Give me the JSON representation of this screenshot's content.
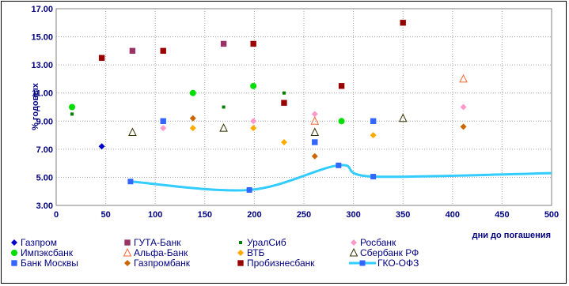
{
  "chart_data": {
    "type": "scatter",
    "title": "",
    "xlabel": "дни до погашения",
    "ylabel": "% годовых",
    "xlim": [
      0,
      500
    ],
    "ylim": [
      3.0,
      17.0
    ],
    "x_ticks": [
      "0",
      "50",
      "100",
      "150",
      "200",
      "250",
      "300",
      "350",
      "400",
      "450",
      "500"
    ],
    "y_ticks": [
      "3.00",
      "5.00",
      "7.00",
      "9.00",
      "11.00",
      "13.00",
      "15.00",
      "17.00"
    ],
    "grid": "dotted",
    "legend_position": "bottom",
    "series": [
      {
        "name": "Газпром",
        "marker": "diamond",
        "color": "#0000cc",
        "points": [
          [
            46,
            7.2
          ]
        ]
      },
      {
        "name": "ГУТА-Банк",
        "marker": "square",
        "color": "#993366",
        "points": [
          [
            77,
            14.0
          ],
          [
            169,
            14.5
          ]
        ]
      },
      {
        "name": "УралСиб",
        "marker": "smallsquare",
        "color": "#008000",
        "points": [
          [
            16,
            9.5
          ],
          [
            169,
            10.0
          ],
          [
            230,
            11.0
          ]
        ]
      },
      {
        "name": "Росбанк",
        "marker": "diamond",
        "color": "#ff99cc",
        "points": [
          [
            108,
            8.5
          ],
          [
            199,
            9.0
          ],
          [
            261,
            9.5
          ],
          [
            411,
            10.0
          ]
        ]
      },
      {
        "name": "Импэксбанк",
        "marker": "circle",
        "color": "#00dd00",
        "points": [
          [
            16,
            10.0
          ],
          [
            138,
            11.0
          ],
          [
            199,
            11.5
          ],
          [
            288,
            9.0
          ]
        ]
      },
      {
        "name": "Альфа-Банк",
        "marker": "triangle",
        "color": "#ff6633",
        "points": [
          [
            261,
            9.0
          ],
          [
            411,
            12.0
          ]
        ]
      },
      {
        "name": "ВТБ",
        "marker": "diamond",
        "color": "#ffaa00",
        "points": [
          [
            138,
            8.5
          ],
          [
            199,
            8.5
          ],
          [
            230,
            7.5
          ],
          [
            320,
            8.0
          ]
        ]
      },
      {
        "name": "Сбербанк РФ",
        "marker": "triangle",
        "color": "#333300",
        "points": [
          [
            77,
            8.2
          ],
          [
            169,
            8.5
          ],
          [
            261,
            8.2
          ],
          [
            350,
            9.2
          ]
        ]
      },
      {
        "name": "Банк Москвы",
        "marker": "square",
        "color": "#3366ff",
        "points": [
          [
            108,
            9.0
          ],
          [
            261,
            7.5
          ],
          [
            320,
            9.0
          ]
        ]
      },
      {
        "name": "Газпромбанк",
        "marker": "diamond",
        "color": "#cc6600",
        "points": [
          [
            138,
            9.2
          ],
          [
            261,
            6.5
          ],
          [
            411,
            8.6
          ]
        ]
      },
      {
        "name": "Пробизнесбанк",
        "marker": "square",
        "color": "#990000",
        "points": [
          [
            46,
            13.5
          ],
          [
            108,
            14.0
          ],
          [
            199,
            14.5
          ],
          [
            230,
            10.3
          ],
          [
            288,
            11.5
          ],
          [
            350,
            16.0
          ]
        ]
      },
      {
        "name": "ГКО-ОФЗ",
        "marker": "line",
        "color": "#33ccff",
        "points": [
          [
            75,
            4.7
          ],
          [
            195,
            4.1
          ],
          [
            285,
            5.85
          ],
          [
            320,
            5.05
          ],
          [
            500,
            5.3
          ]
        ]
      }
    ]
  }
}
